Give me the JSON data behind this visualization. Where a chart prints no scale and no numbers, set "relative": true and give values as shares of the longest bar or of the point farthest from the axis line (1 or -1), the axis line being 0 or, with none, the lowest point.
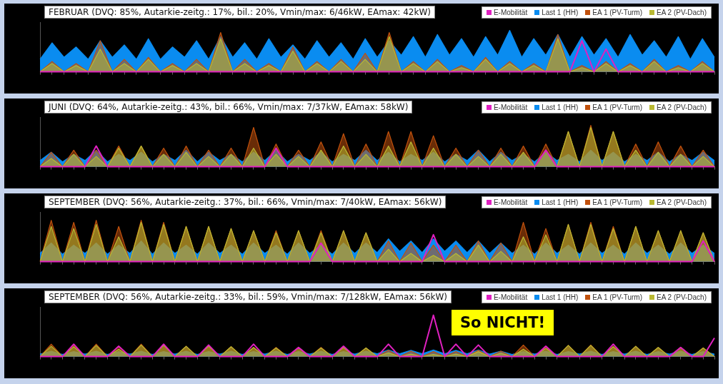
{
  "chart_data": [
    {
      "type": "area",
      "title": "FEBRUAR (DVQ: 85%, Autarkie-zeitg.: 17%, bil.: 20%, Vmin/max: 6/46kW, EAmax: 42kW)",
      "relative": true,
      "legend": "top right",
      "categories": [
        null,
        null,
        null,
        null,
        null,
        null,
        null,
        null,
        null,
        null,
        null,
        null,
        null,
        null,
        null,
        null,
        null,
        null,
        null,
        null,
        null,
        null,
        null,
        null,
        null,
        null,
        null,
        null,
        null,
        null,
        null,
        null,
        null,
        null,
        null,
        null,
        null,
        null,
        null,
        null,
        null,
        null,
        null,
        null,
        null,
        null,
        null,
        null,
        null,
        null,
        null,
        null,
        null,
        null,
        null,
        null,
        null
      ],
      "series": [
        {
          "name": "E-Mobilität",
          "type": "line",
          "color": "#e020c0",
          "values": [
            0,
            0,
            0,
            0,
            0,
            0,
            0,
            0,
            0,
            0,
            0,
            0,
            0,
            0,
            0,
            0,
            0,
            0,
            0,
            0,
            0,
            0,
            0,
            0,
            0,
            0,
            0,
            0,
            0,
            0,
            0,
            0,
            0,
            0,
            0,
            0,
            0,
            0,
            0,
            0,
            0,
            0,
            0,
            0,
            0,
            0.75,
            0,
            0.55,
            0,
            0,
            0,
            0,
            0,
            0,
            0,
            0,
            0
          ]
        },
        {
          "name": "Last 1 (HH)",
          "color": "#0a8cf0",
          "values": [
            0.3,
            0.7,
            0.35,
            0.6,
            0.3,
            0.75,
            0.35,
            0.65,
            0.3,
            0.8,
            0.3,
            0.6,
            0.35,
            0.75,
            0.3,
            0.85,
            0.35,
            0.7,
            0.3,
            0.8,
            0.35,
            0.65,
            0.3,
            0.75,
            0.35,
            0.7,
            0.3,
            0.8,
            0.35,
            0.75,
            0.4,
            0.85,
            0.35,
            0.9,
            0.4,
            0.8,
            0.35,
            0.85,
            0.4,
            1.0,
            0.35,
            0.8,
            0.4,
            0.9,
            0.35,
            0.85,
            0.4,
            0.8,
            0.35,
            0.9,
            0.4,
            0.75,
            0.35,
            0.85,
            0.3,
            0.8,
            0.35
          ]
        },
        {
          "name": "EA 1 (PV-Turm)",
          "color": "#c0500c",
          "values": [
            0,
            0.25,
            0,
            0.2,
            0,
            0.75,
            0,
            0.3,
            0,
            0.35,
            0,
            0.2,
            0,
            0.3,
            0,
            0.95,
            0,
            0.3,
            0,
            0.2,
            0,
            0.6,
            0,
            0.25,
            0,
            0.3,
            0,
            0.45,
            0,
            0.95,
            0,
            0.25,
            0,
            0.3,
            0,
            0.15,
            0,
            0.35,
            0,
            0.25,
            0,
            0.2,
            0,
            0.9,
            0,
            0.15,
            0,
            0.25,
            0,
            0.2,
            0,
            0.3,
            0,
            0.15,
            0,
            0.25,
            0
          ]
        },
        {
          "name": "EA 2 (PV-Dach)",
          "color": "#b8b832",
          "values": [
            0,
            0.2,
            0,
            0.15,
            0,
            0.55,
            0,
            0.2,
            0,
            0.3,
            0,
            0.15,
            0,
            0.2,
            0,
            0.8,
            0,
            0.2,
            0,
            0.15,
            0,
            0.5,
            0,
            0.2,
            0,
            0.25,
            0,
            0.3,
            0,
            0.85,
            0,
            0.2,
            0,
            0.25,
            0,
            0.1,
            0,
            0.3,
            0,
            0.2,
            0,
            0.15,
            0,
            0.8,
            0,
            0.1,
            0,
            0.2,
            0,
            0.15,
            0,
            0.25,
            0,
            0.1,
            0,
            0.2,
            0
          ]
        }
      ]
    },
    {
      "type": "area",
      "title": "JUNI (DVQ: 64%, Autarkie-zeitg.: 43%, bil.: 66%, Vmin/max: 7/37kW, EAmax: 58kW)",
      "relative": true,
      "legend": "top right",
      "categories": [
        null,
        null,
        null,
        null,
        null,
        null,
        null,
        null,
        null,
        null,
        null,
        null,
        null,
        null,
        null,
        null,
        null,
        null,
        null,
        null,
        null,
        null,
        null,
        null,
        null,
        null,
        null,
        null,
        null,
        null,
        null,
        null,
        null,
        null,
        null,
        null,
        null,
        null,
        null,
        null,
        null,
        null,
        null,
        null,
        null,
        null,
        null,
        null,
        null,
        null,
        null,
        null,
        null,
        null,
        null,
        null,
        null,
        null,
        null,
        null,
        null
      ],
      "series": [
        {
          "name": "E-Mobilität",
          "type": "line",
          "color": "#e020c0",
          "values": [
            0,
            0,
            0,
            0,
            0,
            0.5,
            0,
            0,
            0,
            0,
            0,
            0,
            0,
            0,
            0,
            0,
            0,
            0,
            0,
            0,
            0,
            0.45,
            0,
            0,
            0,
            0,
            0,
            0,
            0,
            0,
            0,
            0,
            0,
            0,
            0,
            0,
            0,
            0,
            0,
            0,
            0,
            0,
            0,
            0,
            0,
            0.4,
            0,
            0,
            0,
            0,
            0,
            0,
            0,
            0,
            0,
            0,
            0,
            0,
            0,
            0,
            0
          ]
        },
        {
          "name": "Last 1 (HH)",
          "color": "#0a8cf0",
          "values": [
            0.15,
            0.35,
            0.12,
            0.3,
            0.15,
            0.4,
            0.12,
            0.3,
            0.15,
            0.35,
            0.12,
            0.3,
            0.15,
            0.4,
            0.12,
            0.35,
            0.15,
            0.3,
            0.12,
            0.35,
            0.15,
            0.4,
            0.12,
            0.3,
            0.15,
            0.35,
            0.12,
            0.3,
            0.15,
            0.4,
            0.15,
            0.35,
            0.12,
            0.3,
            0.15,
            0.35,
            0.12,
            0.3,
            0.15,
            0.4,
            0.12,
            0.35,
            0.15,
            0.3,
            0.12,
            0.35,
            0.15,
            0.3,
            0.12,
            0.4,
            0.15,
            0.35,
            0.12,
            0.3,
            0.15,
            0.35,
            0.12,
            0.3,
            0.15,
            0.35,
            0.15
          ]
        },
        {
          "name": "EA 1 (PV-Turm)",
          "color": "#c0500c",
          "values": [
            0,
            0.35,
            0,
            0.4,
            0,
            0.4,
            0,
            0.5,
            0,
            0.5,
            0,
            0.45,
            0,
            0.5,
            0,
            0.4,
            0,
            0.45,
            0,
            0.95,
            0,
            0.55,
            0,
            0.4,
            0,
            0.6,
            0,
            0.8,
            0,
            0.55,
            0,
            0.85,
            0,
            0.85,
            0,
            0.75,
            0,
            0.45,
            0,
            0.4,
            0,
            0.45,
            0,
            0.5,
            0,
            0.55,
            0,
            0.85,
            0,
            1.0,
            0,
            0.85,
            0,
            0.55,
            0,
            0.6,
            0,
            0.5,
            0,
            0.4,
            0
          ]
        },
        {
          "name": "EA 2 (PV-Dach)",
          "color": "#b8b832",
          "values": [
            0,
            0.2,
            0,
            0.3,
            0,
            0.25,
            0,
            0.45,
            0,
            0.5,
            0,
            0.3,
            0,
            0.35,
            0,
            0.25,
            0,
            0.3,
            0,
            0.45,
            0,
            0.3,
            0,
            0.25,
            0,
            0.4,
            0,
            0.5,
            0,
            0.3,
            0,
            0.5,
            0,
            0.6,
            0,
            0.45,
            0,
            0.3,
            0,
            0.25,
            0,
            0.3,
            0,
            0.35,
            0,
            0.4,
            0,
            0.85,
            0,
            0.95,
            0,
            0.85,
            0,
            0.4,
            0,
            0.35,
            0,
            0.3,
            0,
            0.25,
            0
          ]
        }
      ]
    },
    {
      "type": "area",
      "title": "SEPTEMBER (DVQ: 56%, Autarkie-zeitg.: 37%, bil.: 66%, Vmin/max: 7/40kW, EAmax: 56kW)",
      "relative": true,
      "legend": "top right",
      "categories": [
        null,
        null,
        null,
        null,
        null,
        null,
        null,
        null,
        null,
        null,
        null,
        null,
        null,
        null,
        null,
        null,
        null,
        null,
        null,
        null,
        null,
        null,
        null,
        null,
        null,
        null,
        null,
        null,
        null,
        null,
        null,
        null,
        null,
        null,
        null,
        null,
        null,
        null,
        null,
        null,
        null,
        null,
        null,
        null,
        null,
        null,
        null,
        null,
        null,
        null,
        null,
        null,
        null,
        null,
        null,
        null,
        null,
        null,
        null,
        null,
        null
      ],
      "series": [
        {
          "name": "E-Mobilität",
          "type": "line",
          "color": "#e020c0",
          "values": [
            0,
            0,
            0,
            0,
            0,
            0,
            0,
            0,
            0,
            0,
            0,
            0,
            0,
            0,
            0,
            0,
            0,
            0,
            0,
            0,
            0,
            0,
            0,
            0,
            0,
            0.45,
            0,
            0,
            0,
            0,
            0,
            0,
            0,
            0,
            0,
            0.65,
            0,
            0,
            0,
            0,
            0,
            0,
            0,
            0,
            0,
            0,
            0,
            0,
            0,
            0,
            0,
            0,
            0,
            0,
            0,
            0,
            0,
            0,
            0,
            0.5,
            0
          ]
        },
        {
          "name": "Last 1 (HH)",
          "color": "#0a8cf0",
          "values": [
            0.2,
            0.45,
            0.18,
            0.4,
            0.2,
            0.45,
            0.18,
            0.4,
            0.2,
            0.5,
            0.18,
            0.45,
            0.2,
            0.4,
            0.18,
            0.45,
            0.2,
            0.4,
            0.18,
            0.45,
            0.2,
            0.4,
            0.18,
            0.45,
            0.2,
            0.4,
            0.18,
            0.45,
            0.2,
            0.45,
            0.22,
            0.55,
            0.25,
            0.5,
            0.22,
            0.55,
            0.25,
            0.5,
            0.22,
            0.5,
            0.2,
            0.45,
            0.2,
            0.4,
            0.18,
            0.45,
            0.2,
            0.4,
            0.18,
            0.45,
            0.2,
            0.4,
            0.18,
            0.45,
            0.2,
            0.4,
            0.18,
            0.45,
            0.2,
            0.4,
            0.2
          ]
        },
        {
          "name": "EA 1 (PV-Turm)",
          "color": "#c0500c",
          "values": [
            0,
            1.0,
            0,
            0.95,
            0,
            1.0,
            0,
            0.85,
            0,
            1.0,
            0,
            0.95,
            0,
            0.85,
            0,
            0.85,
            0,
            0.8,
            0,
            0.75,
            0,
            0.75,
            0,
            0.75,
            0,
            0.75,
            0,
            0.75,
            0,
            0.7,
            0,
            0.5,
            0,
            0.45,
            0,
            0.4,
            0,
            0.4,
            0,
            0.5,
            0,
            0.45,
            0,
            0.95,
            0,
            0.8,
            0,
            0.9,
            0,
            0.95,
            0,
            0.85,
            0,
            0.85,
            0,
            0.75,
            0,
            0.75,
            0,
            0.7,
            0
          ]
        },
        {
          "name": "EA 2 (PV-Dach)",
          "color": "#b8b832",
          "values": [
            0,
            0.85,
            0,
            0.8,
            0,
            0.9,
            0,
            0.6,
            0,
            0.95,
            0,
            0.9,
            0,
            0.85,
            0,
            0.85,
            0,
            0.8,
            0,
            0.75,
            0,
            0.7,
            0,
            0.75,
            0,
            0.7,
            0,
            0.75,
            0,
            0.7,
            0,
            0.3,
            0,
            0.2,
            0,
            0.15,
            0,
            0.2,
            0,
            0.4,
            0,
            0.25,
            0,
            0.6,
            0,
            0.65,
            0,
            0.9,
            0,
            0.9,
            0,
            0.8,
            0,
            0.85,
            0,
            0.75,
            0,
            0.75,
            0,
            0.7,
            0
          ]
        }
      ]
    },
    {
      "type": "area",
      "title": "SEPTEMBER (DVQ: 56%, Autarkie-zeitg.: 33%, bil.: 59%, Vmin/max: 7/128kW, EAmax: 56kW)",
      "relative": true,
      "legend": "top right",
      "annotations": [
        "So NICHT!"
      ],
      "categories": [
        null,
        null,
        null,
        null,
        null,
        null,
        null,
        null,
        null,
        null,
        null,
        null,
        null,
        null,
        null,
        null,
        null,
        null,
        null,
        null,
        null,
        null,
        null,
        null,
        null,
        null,
        null,
        null,
        null,
        null,
        null,
        null,
        null,
        null,
        null,
        null,
        null,
        null,
        null,
        null,
        null,
        null,
        null,
        null,
        null,
        null,
        null,
        null,
        null,
        null,
        null,
        null,
        null,
        null,
        null,
        null,
        null,
        null,
        null,
        null,
        null
      ],
      "series": [
        {
          "name": "E-Mobilität",
          "type": "line",
          "color": "#e020c0",
          "values": [
            0,
            0,
            0,
            0.3,
            0,
            0,
            0,
            0.25,
            0,
            0,
            0,
            0.3,
            0,
            0,
            0,
            0.28,
            0,
            0,
            0,
            0.3,
            0,
            0,
            0,
            0.22,
            0,
            0,
            0,
            0.25,
            0,
            0,
            0,
            0.3,
            0,
            0,
            0,
            1.0,
            0,
            0.3,
            0,
            0.28,
            0,
            0,
            0,
            0,
            0,
            0.25,
            0,
            0,
            0,
            0,
            0,
            0.3,
            0,
            0,
            0,
            0,
            0,
            0.22,
            0,
            0,
            0.45
          ]
        },
        {
          "name": "Last 1 (HH)",
          "color": "#0a8cf0",
          "values": [
            0.06,
            0.13,
            0.05,
            0.12,
            0.06,
            0.13,
            0.05,
            0.12,
            0.06,
            0.13,
            0.05,
            0.12,
            0.06,
            0.13,
            0.05,
            0.12,
            0.06,
            0.13,
            0.05,
            0.12,
            0.06,
            0.13,
            0.05,
            0.12,
            0.06,
            0.13,
            0.05,
            0.12,
            0.06,
            0.13,
            0.07,
            0.16,
            0.07,
            0.15,
            0.07,
            0.16,
            0.07,
            0.15,
            0.07,
            0.16,
            0.06,
            0.13,
            0.05,
            0.12,
            0.06,
            0.13,
            0.05,
            0.12,
            0.06,
            0.13,
            0.05,
            0.12,
            0.06,
            0.13,
            0.05,
            0.12,
            0.06,
            0.13,
            0.05,
            0.12,
            0.06
          ]
        },
        {
          "name": "EA 1 (PV-Turm)",
          "color": "#c0500c",
          "values": [
            0,
            0.3,
            0,
            0.28,
            0,
            0.3,
            0,
            0.25,
            0,
            0.3,
            0,
            0.28,
            0,
            0.25,
            0,
            0.25,
            0,
            0.24,
            0,
            0.22,
            0,
            0.22,
            0,
            0.22,
            0,
            0.22,
            0,
            0.22,
            0,
            0.21,
            0,
            0.15,
            0,
            0.13,
            0,
            0.12,
            0,
            0.12,
            0,
            0.15,
            0,
            0.13,
            0,
            0.28,
            0,
            0.24,
            0,
            0.27,
            0,
            0.28,
            0,
            0.25,
            0,
            0.25,
            0,
            0.22,
            0,
            0.22,
            0,
            0.21,
            0
          ]
        },
        {
          "name": "EA 2 (PV-Dach)",
          "color": "#b8b832",
          "values": [
            0,
            0.25,
            0,
            0.24,
            0,
            0.27,
            0,
            0.18,
            0,
            0.28,
            0,
            0.27,
            0,
            0.25,
            0,
            0.25,
            0,
            0.24,
            0,
            0.22,
            0,
            0.21,
            0,
            0.22,
            0,
            0.21,
            0,
            0.22,
            0,
            0.21,
            0,
            0.09,
            0,
            0.06,
            0,
            0.05,
            0,
            0.06,
            0,
            0.12,
            0,
            0.08,
            0,
            0.18,
            0,
            0.2,
            0,
            0.27,
            0,
            0.27,
            0,
            0.24,
            0,
            0.25,
            0,
            0.22,
            0,
            0.22,
            0,
            0.21,
            0
          ]
        }
      ]
    }
  ]
}
